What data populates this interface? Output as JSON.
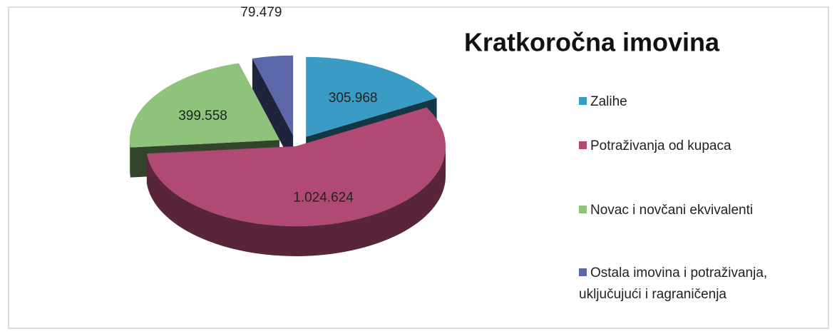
{
  "chart_data": {
    "type": "pie3d",
    "title": "Kratkoročna imovina",
    "categories": [
      "Zalihe",
      "Potraživanja od kupaca",
      "Novac i novčani ekvivalenti",
      "Ostala imovina i potraživanja, uključujući i ragraničenja"
    ],
    "values": [
      305968,
      1024624,
      399558,
      79479
    ],
    "value_labels": [
      "305.968",
      "1.024.624",
      "399.558",
      "79.479"
    ],
    "colors": [
      "#3a9cc4",
      "#b04a74",
      "#8fc27a",
      "#5b67a8"
    ],
    "legend": "right"
  }
}
